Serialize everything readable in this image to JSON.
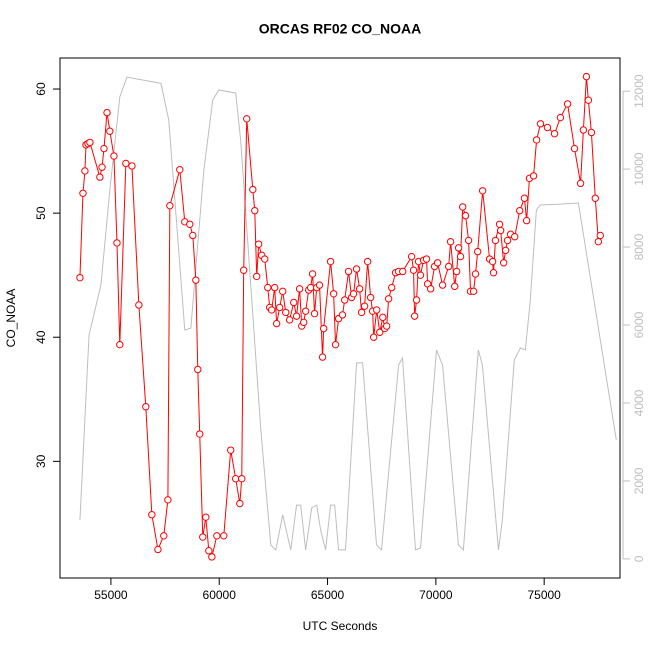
{
  "chart_data": {
    "type": "line",
    "title": "ORCAS RF02 CO_NOAA",
    "xlabel": "UTC Seconds",
    "ylabel": "CO_NOAA",
    "xlim": [
      52650,
      78500
    ],
    "ylim": [
      20.6,
      62.5
    ],
    "y2lim": [
      -490,
      12850
    ],
    "xticks": [
      55000,
      60000,
      65000,
      70000,
      75000
    ],
    "yticks": [
      30,
      40,
      50,
      60
    ],
    "y2ticks": [
      0,
      2000,
      4000,
      6000,
      8000,
      10000,
      12000
    ],
    "series": [
      {
        "color": "#ff0000",
        "marker": "circle",
        "x": [
          53570,
          53710,
          53800,
          53850,
          53940,
          54030,
          54490,
          54590,
          54680,
          54820,
          54950,
          55140,
          55280,
          55410,
          55690,
          55970,
          56290,
          56610,
          56890,
          57170,
          57440,
          57630,
          57720,
          58180,
          58410,
          58640,
          58780,
          58920,
          59010,
          59100,
          59240,
          59380,
          59520,
          59660,
          59890,
          60210,
          60530,
          60760,
          60950,
          61040,
          61130,
          61270,
          61550,
          61640,
          61730,
          61820,
          61960,
          62100,
          62240,
          62330,
          62420,
          62560,
          62650,
          62790,
          62930,
          63070,
          63250,
          63440,
          63570,
          63710,
          63810,
          63900,
          63990,
          64130,
          64220,
          64310,
          64400,
          64500,
          64630,
          64770,
          64820,
          65140,
          65280,
          65370,
          65510,
          65690,
          65790,
          65970,
          66110,
          66200,
          66340,
          66480,
          66570,
          66710,
          66850,
          66990,
          67080,
          67130,
          67270,
          67410,
          67550,
          67640,
          67730,
          67820,
          67960,
          68140,
          68280,
          68470,
          68880,
          68970,
          69020,
          69110,
          69200,
          69290,
          69430,
          69570,
          69620,
          69760,
          69940,
          70080,
          70310,
          70590,
          70680,
          70870,
          70960,
          71050,
          71140,
          71240,
          71370,
          71510,
          71600,
          71740,
          71830,
          71930,
          72160,
          72480,
          72620,
          72660,
          72750,
          72940,
          72990,
          73130,
          73220,
          73310,
          73450,
          73640,
          73870,
          74090,
          74190,
          74320,
          74510,
          74650,
          74830,
          75150,
          75480,
          75750,
          76080,
          76400,
          76680,
          76810,
          76950,
          77040,
          77180,
          77360,
          77500,
          77590
        ],
        "values": [
          44.8,
          51.6,
          53.4,
          55.5,
          55.6,
          55.7,
          52.9,
          53.7,
          55.2,
          58.1,
          56.6,
          54.6,
          47.6,
          39.4,
          54.0,
          53.8,
          42.6,
          34.4,
          25.7,
          22.9,
          24.0,
          26.9,
          50.6,
          53.5,
          49.3,
          49.1,
          48.2,
          44.6,
          37.4,
          32.2,
          23.9,
          25.5,
          22.8,
          22.3,
          24.0,
          24.0,
          30.9,
          28.6,
          26.6,
          28.6,
          45.4,
          57.6,
          51.9,
          50.2,
          44.9,
          47.5,
          46.6,
          46.3,
          44.0,
          42.4,
          42.2,
          44.0,
          41.1,
          42.4,
          43.7,
          42.0,
          41.4,
          42.8,
          41.7,
          43.9,
          40.9,
          41.2,
          42.1,
          43.8,
          44.0,
          45.1,
          41.9,
          44.0,
          44.2,
          38.4,
          40.7,
          46.1,
          43.5,
          39.4,
          41.5,
          41.8,
          43.0,
          45.3,
          43.2,
          43.5,
          45.5,
          43.9,
          42.0,
          42.5,
          46.1,
          43.2,
          42.1,
          40.0,
          42.2,
          40.4,
          41.6,
          40.7,
          40.9,
          43.1,
          44.0,
          45.2,
          45.3,
          45.3,
          46.5,
          45.4,
          41.7,
          43.0,
          46.1,
          45.0,
          46.2,
          46.3,
          44.3,
          43.9,
          45.7,
          46.0,
          44.2,
          45.7,
          47.7,
          44.1,
          45.3,
          47.2,
          46.5,
          50.5,
          49.8,
          47.8,
          43.7,
          43.7,
          45.1,
          46.9,
          51.8,
          46.3,
          46.1,
          45.2,
          47.8,
          49.1,
          48.6,
          46.0,
          47.0,
          47.8,
          48.3,
          48.1,
          50.2,
          51.2,
          49.4,
          52.8,
          53.0,
          55.9,
          57.2,
          56.9,
          56.4,
          57.7,
          58.8,
          55.2,
          52.4,
          56.7,
          61.0,
          59.1,
          56.5,
          51.2,
          47.7,
          48.2
        ]
      },
      {
        "color": "#bebebe",
        "axis": "y2",
        "x": [
          53570,
          53990,
          54540,
          54950,
          55410,
          55740,
          57310,
          57670,
          58410,
          58690,
          59290,
          59700,
          59980,
          60760,
          60990,
          61920,
          62380,
          62610,
          62930,
          63300,
          63570,
          63760,
          63990,
          64270,
          64500,
          64680,
          64910,
          65140,
          65330,
          65510,
          65830,
          66340,
          66620,
          67260,
          67490,
          68280,
          68460,
          69060,
          69290,
          70030,
          70310,
          71040,
          71270,
          71960,
          72150,
          72890,
          73070,
          73620,
          73900,
          74130,
          74360,
          74640,
          74820,
          75750,
          76580,
          78330
        ],
        "values": [
          1000,
          5740,
          7030,
          9460,
          11850,
          12360,
          12200,
          11260,
          5870,
          5920,
          9970,
          11770,
          12030,
          11950,
          10740,
          3310,
          360,
          230,
          1130,
          230,
          1380,
          1380,
          230,
          1310,
          1380,
          740,
          230,
          1380,
          1380,
          230,
          230,
          5030,
          5030,
          360,
          230,
          4970,
          5150,
          230,
          280,
          5360,
          4970,
          360,
          230,
          5360,
          4970,
          230,
          1000,
          5100,
          5410,
          5360,
          6640,
          8950,
          9080,
          9100,
          9130,
          3050
        ]
      }
    ]
  }
}
